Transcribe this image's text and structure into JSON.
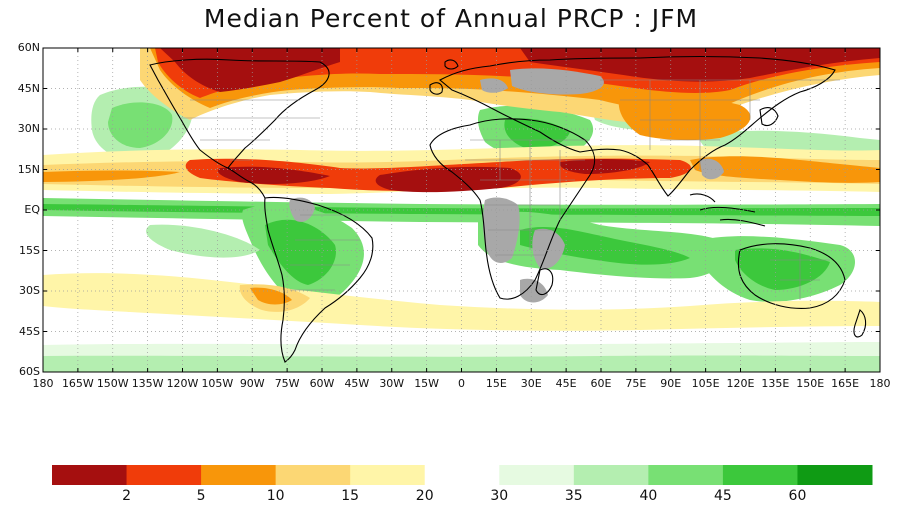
{
  "title": "Median Percent of Annual PRCP  :  JFM",
  "lat_labels": [
    "60N",
    "45N",
    "30N",
    "15N",
    "EQ",
    "15S",
    "30S",
    "45S",
    "60S"
  ],
  "lon_labels": [
    "180",
    "165W",
    "150W",
    "135W",
    "120W",
    "105W",
    "90W",
    "75W",
    "60W",
    "45W",
    "30W",
    "15W",
    "0",
    "15E",
    "30E",
    "45E",
    "60E",
    "75E",
    "90E",
    "105E",
    "120E",
    "135E",
    "150E",
    "165E",
    "180"
  ],
  "colorbar": {
    "colors": [
      "#a50f0f",
      "#f03c0a",
      "#f8960a",
      "#fcd774",
      "#fff5a8",
      "#ffffff",
      "#e6fae1",
      "#b4eeb0",
      "#78e074",
      "#3cc83c",
      "#0f9b14"
    ],
    "labels": [
      "2",
      "5",
      "10",
      "15",
      "20",
      "30",
      "35",
      "40",
      "45",
      "60"
    ]
  },
  "colors": {
    "land_gray": "#a8a8a8",
    "border": "#888888",
    "coast": "#000000"
  }
}
